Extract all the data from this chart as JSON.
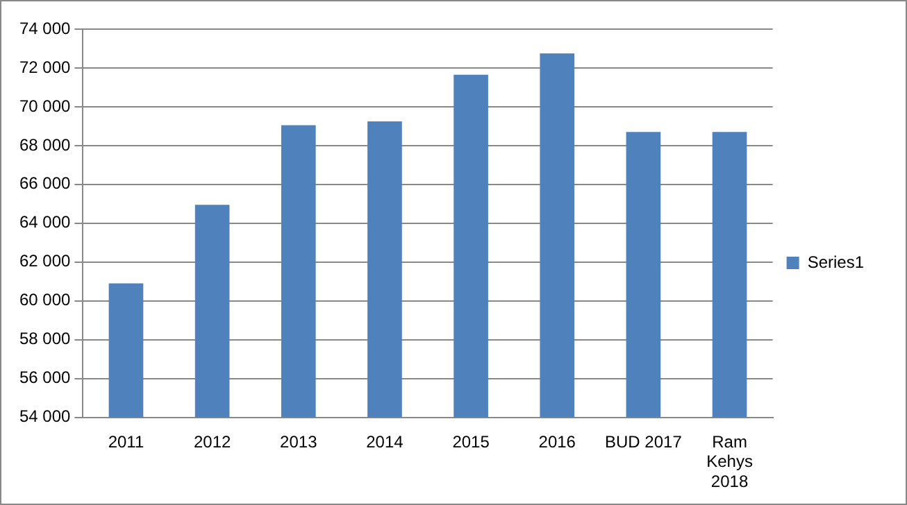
{
  "chart_data": {
    "type": "bar",
    "categories": [
      "2011",
      "2012",
      "2013",
      "2014",
      "2015",
      "2016",
      "BUD 2017",
      "Ram Kehys 2018"
    ],
    "series": [
      {
        "name": "Series1",
        "color": "#4f81bd",
        "values": [
          60900,
          64950,
          69050,
          69250,
          71650,
          72750,
          68700,
          68700
        ]
      }
    ],
    "ylim": [
      54000,
      74000
    ],
    "yticks": [
      {
        "value": 54000,
        "label": "54 000"
      },
      {
        "value": 56000,
        "label": "56 000"
      },
      {
        "value": 58000,
        "label": "58 000"
      },
      {
        "value": 60000,
        "label": "60 000"
      },
      {
        "value": 62000,
        "label": "62 000"
      },
      {
        "value": 64000,
        "label": "64 000"
      },
      {
        "value": 66000,
        "label": "66 000"
      },
      {
        "value": 68000,
        "label": "68 000"
      },
      {
        "value": 70000,
        "label": "70 000"
      },
      {
        "value": 72000,
        "label": "72 000"
      },
      {
        "value": 74000,
        "label": "74 000"
      }
    ],
    "grid": "y",
    "legend": "right"
  }
}
